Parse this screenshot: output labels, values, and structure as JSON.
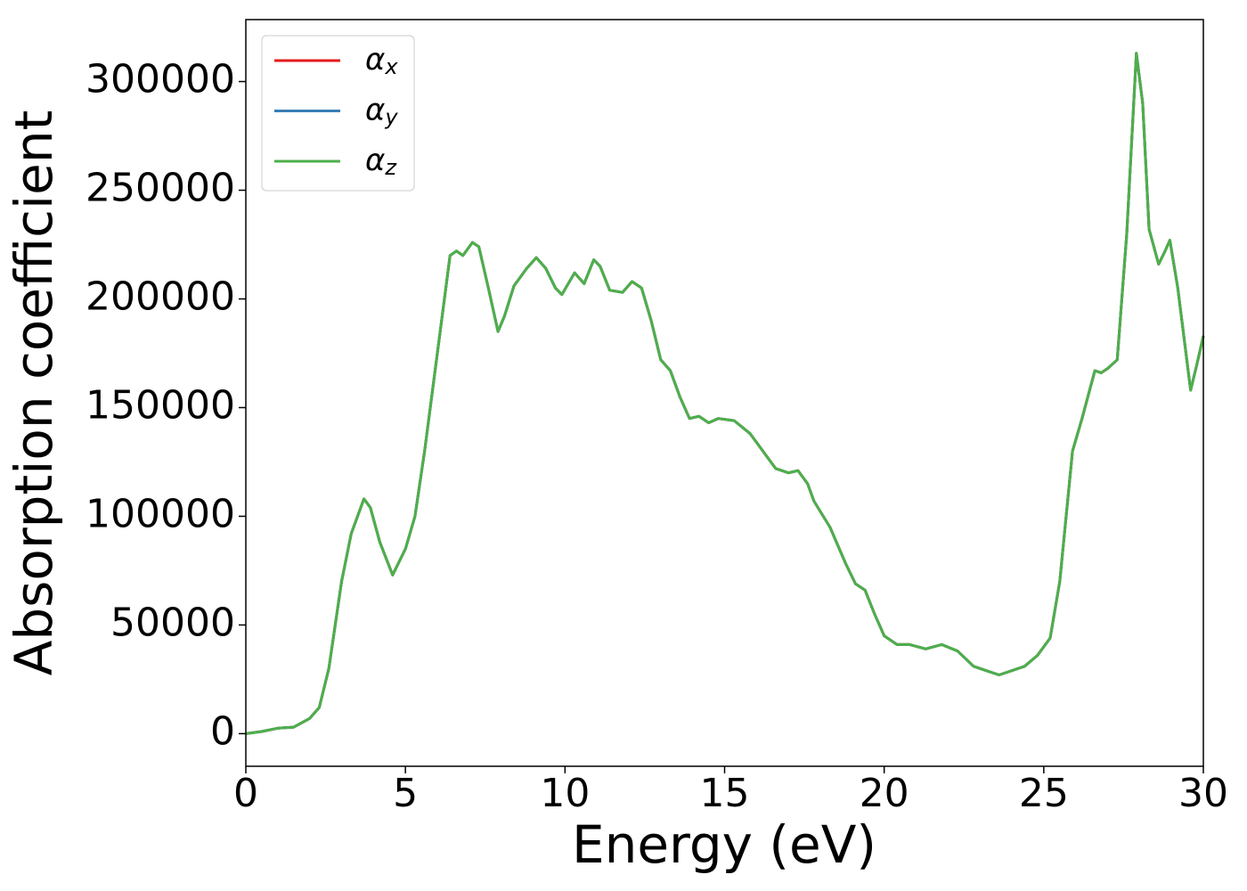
{
  "chart_data": {
    "type": "line",
    "xlabel": "Energy (eV)",
    "ylabel": "Absorption coefficient",
    "x": [
      0,
      0.5,
      1,
      1.5,
      2,
      2.3,
      2.6,
      3,
      3.3,
      3.7,
      3.9,
      4.2,
      4.6,
      5,
      5.3,
      5.6,
      6,
      6.4,
      6.6,
      6.8,
      7.1,
      7.3,
      7.6,
      7.9,
      8.1,
      8.4,
      8.8,
      9.1,
      9.4,
      9.7,
      9.9,
      10.3,
      10.6,
      10.9,
      11.1,
      11.4,
      11.8,
      12.1,
      12.4,
      12.7,
      13,
      13.3,
      13.6,
      13.9,
      14.2,
      14.5,
      14.8,
      15.3,
      15.8,
      16.2,
      16.6,
      17,
      17.3,
      17.6,
      17.8,
      18.3,
      18.8,
      19.1,
      19.4,
      19.7,
      20,
      20.4,
      20.8,
      21.3,
      21.8,
      22.3,
      22.8,
      23.2,
      23.6,
      24,
      24.4,
      24.8,
      25.2,
      25.5,
      25.9,
      26.2,
      26.6,
      26.8,
      27,
      27.3,
      27.6,
      27.9,
      28.1,
      28.3,
      28.6,
      28.8,
      28.95,
      29.2,
      29.6,
      29.8,
      30
    ],
    "series": [
      {
        "name": "αx",
        "color": "#e41a1c",
        "values": [
          0,
          1000,
          2500,
          3000,
          7000,
          12000,
          30000,
          70000,
          92000,
          108000,
          104000,
          88000,
          73000,
          85000,
          100000,
          130000,
          175000,
          220000,
          222000,
          220000,
          226000,
          224000,
          205000,
          185000,
          192000,
          206000,
          214000,
          219000,
          214000,
          205000,
          202000,
          212000,
          207000,
          218000,
          215000,
          204000,
          203000,
          208000,
          205000,
          190000,
          172000,
          167000,
          155000,
          145000,
          146000,
          143000,
          145000,
          144000,
          138000,
          130000,
          122000,
          120000,
          121000,
          115000,
          107000,
          95000,
          78000,
          69000,
          66000,
          55000,
          45000,
          41000,
          41000,
          39000,
          41000,
          38000,
          31000,
          29000,
          27000,
          29000,
          31000,
          36000,
          44000,
          70000,
          130000,
          145000,
          167000,
          166000,
          168000,
          172000,
          230000,
          313000,
          290000,
          232000,
          216000,
          222000,
          227000,
          205000,
          158000,
          170000,
          183000
        ]
      },
      {
        "name": "αy",
        "color": "#377eb8",
        "values": [
          0,
          1000,
          2500,
          3000,
          7000,
          12000,
          30000,
          70000,
          92000,
          108000,
          104000,
          88000,
          73000,
          85000,
          100000,
          130000,
          175000,
          220000,
          222000,
          220000,
          226000,
          224000,
          205000,
          185000,
          192000,
          206000,
          214000,
          219000,
          214000,
          205000,
          202000,
          212000,
          207000,
          218000,
          215000,
          204000,
          203000,
          208000,
          205000,
          190000,
          172000,
          167000,
          155000,
          145000,
          146000,
          143000,
          145000,
          144000,
          138000,
          130000,
          122000,
          120000,
          121000,
          115000,
          107000,
          95000,
          78000,
          69000,
          66000,
          55000,
          45000,
          41000,
          41000,
          39000,
          41000,
          38000,
          31000,
          29000,
          27000,
          29000,
          31000,
          36000,
          44000,
          70000,
          130000,
          145000,
          167000,
          166000,
          168000,
          172000,
          230000,
          313000,
          290000,
          232000,
          216000,
          222000,
          227000,
          205000,
          158000,
          170000,
          183000
        ]
      },
      {
        "name": "αz",
        "color": "#4daf4a",
        "values": [
          0,
          1000,
          2500,
          3000,
          7000,
          12000,
          30000,
          70000,
          92000,
          108000,
          104000,
          88000,
          73000,
          85000,
          100000,
          130000,
          175000,
          220000,
          222000,
          220000,
          226000,
          224000,
          205000,
          185000,
          192000,
          206000,
          214000,
          219000,
          214000,
          205000,
          202000,
          212000,
          207000,
          218000,
          215000,
          204000,
          203000,
          208000,
          205000,
          190000,
          172000,
          167000,
          155000,
          145000,
          146000,
          143000,
          145000,
          144000,
          138000,
          130000,
          122000,
          120000,
          121000,
          115000,
          107000,
          95000,
          78000,
          69000,
          66000,
          55000,
          45000,
          41000,
          41000,
          39000,
          41000,
          38000,
          31000,
          29000,
          27000,
          29000,
          31000,
          36000,
          44000,
          70000,
          130000,
          145000,
          167000,
          166000,
          168000,
          172000,
          230000,
          313000,
          290000,
          232000,
          216000,
          222000,
          227000,
          205000,
          158000,
          170000,
          183000
        ]
      }
    ],
    "xlim": [
      0,
      30
    ],
    "xticks": [
      0,
      5,
      10,
      15,
      20,
      25,
      30
    ],
    "ylim": [
      -15000,
      328500
    ],
    "yticks": [
      0,
      50000,
      100000,
      150000,
      200000,
      250000,
      300000
    ],
    "grid": false,
    "legend": "upper left"
  }
}
